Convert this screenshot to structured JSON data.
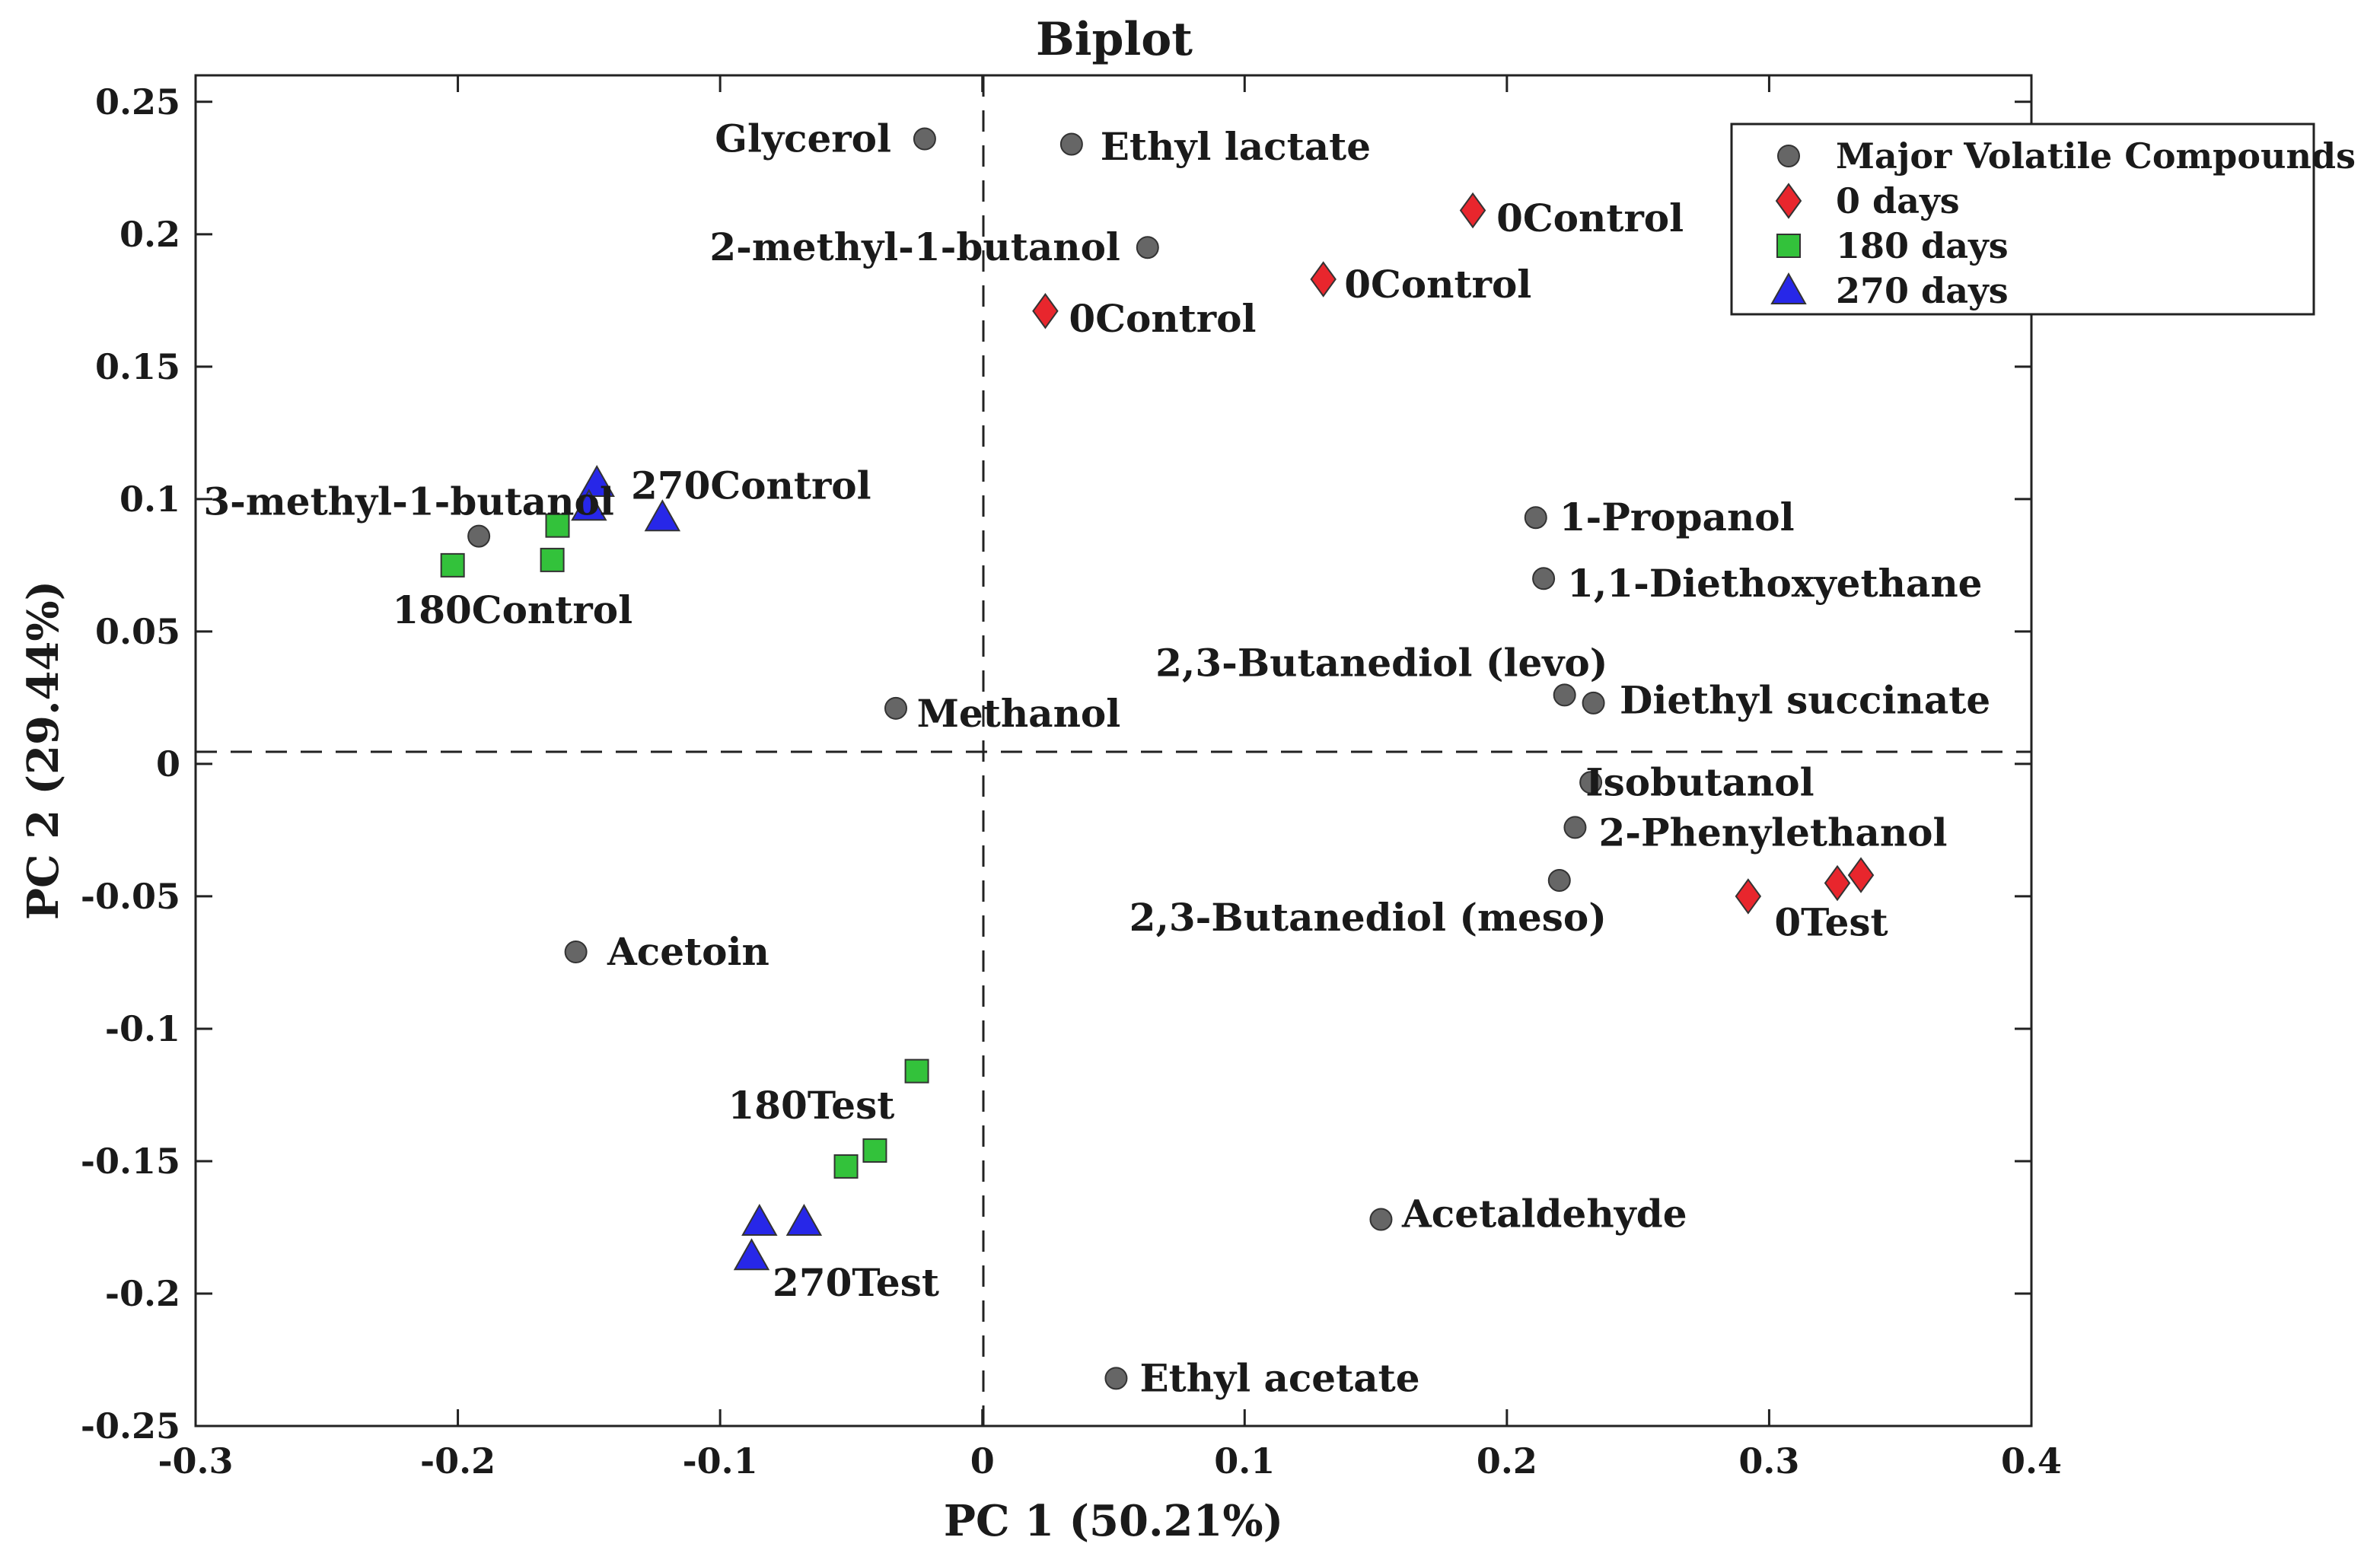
{
  "chart_data": {
    "type": "scatter",
    "title": "Biplot",
    "xlabel": "PC 1 (50.21%)",
    "ylabel": "PC 2 (29.44%)",
    "xlim": [
      -0.3,
      0.4
    ],
    "ylim": [
      -0.25,
      0.26
    ],
    "x_ticks": [
      -0.3,
      -0.2,
      -0.1,
      0,
      0.1,
      0.2,
      0.3,
      0.4
    ],
    "y_ticks": [
      -0.25,
      -0.2,
      -0.15,
      -0.1,
      -0.05,
      0,
      0.05,
      0.1,
      0.15,
      0.2,
      0.25
    ],
    "x_tick_labels": [
      "-0.3",
      "-0.2",
      "-0.1",
      "0",
      "0.1",
      "0.2",
      "0.3",
      "0.4"
    ],
    "y_tick_labels": [
      "-0.25",
      "-0.2",
      "-0.15",
      "-0.1",
      "-0.05",
      "0",
      "0.05",
      "0.1",
      "0.15",
      "0.2",
      "0.25"
    ],
    "grid": false,
    "legend_position": "top-right",
    "series": [
      {
        "name": "Major Volatile Compounds",
        "marker": "circle",
        "color": "#666666",
        "points": [
          {
            "x": -0.022,
            "y": 0.236
          },
          {
            "x": 0.034,
            "y": 0.234
          },
          {
            "x": 0.063,
            "y": 0.195
          },
          {
            "x": -0.192,
            "y": 0.086
          },
          {
            "x": 0.211,
            "y": 0.093
          },
          {
            "x": 0.214,
            "y": 0.07
          },
          {
            "x": -0.033,
            "y": 0.021
          },
          {
            "x": 0.222,
            "y": 0.026
          },
          {
            "x": 0.233,
            "y": 0.023
          },
          {
            "x": 0.232,
            "y": -0.007
          },
          {
            "x": 0.226,
            "y": -0.024
          },
          {
            "x": 0.22,
            "y": -0.044
          },
          {
            "x": -0.155,
            "y": -0.071
          },
          {
            "x": 0.152,
            "y": -0.172
          },
          {
            "x": 0.051,
            "y": -0.232
          }
        ]
      },
      {
        "name": "0 days",
        "marker": "diamond",
        "color": "#e8262d",
        "points": [
          {
            "x": 0.187,
            "y": 0.209
          },
          {
            "x": 0.13,
            "y": 0.183
          },
          {
            "x": 0.024,
            "y": 0.171
          },
          {
            "x": 0.292,
            "y": -0.05
          },
          {
            "x": 0.326,
            "y": -0.045
          },
          {
            "x": 0.335,
            "y": -0.042
          }
        ]
      },
      {
        "name": "180 days",
        "marker": "square",
        "color": "#33c23b",
        "points": [
          {
            "x": -0.202,
            "y": 0.075
          },
          {
            "x": -0.164,
            "y": 0.077
          },
          {
            "x": -0.162,
            "y": 0.09
          },
          {
            "x": -0.025,
            "y": -0.116
          },
          {
            "x": -0.041,
            "y": -0.146
          },
          {
            "x": -0.052,
            "y": -0.152
          }
        ]
      },
      {
        "name": "270 days",
        "marker": "triangle",
        "color": "#2727e8",
        "points": [
          {
            "x": -0.147,
            "y": 0.106
          },
          {
            "x": -0.15,
            "y": 0.097
          },
          {
            "x": -0.122,
            "y": 0.093
          },
          {
            "x": -0.085,
            "y": -0.173
          },
          {
            "x": -0.068,
            "y": -0.173
          },
          {
            "x": -0.088,
            "y": -0.186
          }
        ]
      }
    ],
    "annotations": [
      {
        "text": "Glycerol",
        "x": -0.102,
        "y": 0.236
      },
      {
        "text": "Ethyl lactate",
        "x": 0.045,
        "y": 0.233
      },
      {
        "text": "2-methyl-1-butanol",
        "x": -0.104,
        "y": 0.195
      },
      {
        "text": "0Control",
        "x": 0.196,
        "y": 0.206
      },
      {
        "text": "0Control",
        "x": 0.138,
        "y": 0.181
      },
      {
        "text": "0Control",
        "x": 0.033,
        "y": 0.168
      },
      {
        "text": "3-methyl-1-butanol",
        "x": -0.297,
        "y": 0.099
      },
      {
        "text": "270Control",
        "x": -0.134,
        "y": 0.105
      },
      {
        "text": "180Control",
        "x": -0.225,
        "y": 0.058
      },
      {
        "text": "1-Propanol",
        "x": 0.22,
        "y": 0.093
      },
      {
        "text": "1,1-Diethoxyethane",
        "x": 0.223,
        "y": 0.068
      },
      {
        "text": "2,3-Butanediol (levo)",
        "x": 0.066,
        "y": 0.038
      },
      {
        "text": "Diethyl succinate",
        "x": 0.243,
        "y": 0.024
      },
      {
        "text": "Methanol",
        "x": -0.025,
        "y": 0.019
      },
      {
        "text": "Isobutanol",
        "x": 0.23,
        "y": -0.007
      },
      {
        "text": "2-Phenylethanol",
        "x": 0.235,
        "y": -0.026
      },
      {
        "text": "2,3-Butanediol (meso)",
        "x": 0.056,
        "y": -0.058
      },
      {
        "text": "0Test",
        "x": 0.302,
        "y": -0.06
      },
      {
        "text": "Acetoin",
        "x": -0.143,
        "y": -0.071
      },
      {
        "text": "180Test",
        "x": -0.097,
        "y": -0.129
      },
      {
        "text": "Acetaldehyde",
        "x": 0.16,
        "y": -0.17
      },
      {
        "text": "270Test",
        "x": -0.08,
        "y": -0.196
      },
      {
        "text": "Ethyl acetate",
        "x": 0.06,
        "y": -0.232
      }
    ]
  }
}
